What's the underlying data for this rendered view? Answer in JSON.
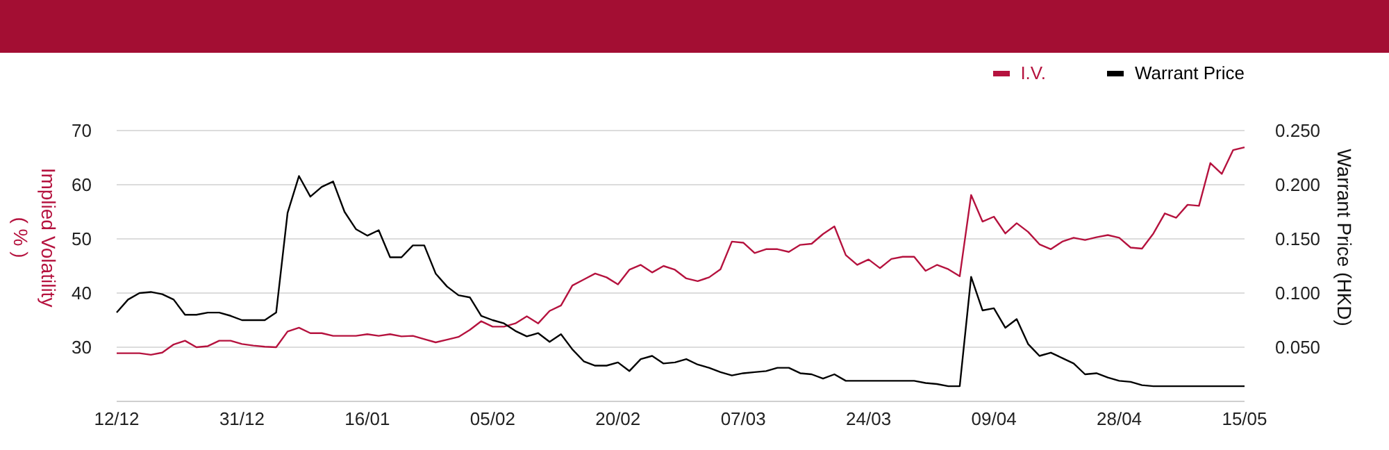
{
  "chart_data": {
    "type": "line",
    "ylabel": "Implied Volatility\n( % )",
    "y2label": "Warrant Price (HKD)",
    "categories": [
      "12/12",
      null,
      null,
      null,
      null,
      null,
      null,
      null,
      null,
      null,
      null,
      "31/12",
      null,
      null,
      null,
      null,
      null,
      null,
      null,
      null,
      null,
      null,
      "16/01",
      null,
      null,
      null,
      null,
      null,
      null,
      null,
      null,
      null,
      null,
      "05/02",
      null,
      null,
      null,
      null,
      null,
      null,
      null,
      null,
      null,
      null,
      "20/02",
      null,
      null,
      null,
      null,
      null,
      null,
      null,
      null,
      null,
      null,
      "07/03",
      null,
      null,
      null,
      null,
      null,
      null,
      null,
      null,
      null,
      null,
      "24/03",
      null,
      null,
      null,
      null,
      null,
      null,
      null,
      null,
      null,
      null,
      "09/04",
      null,
      null,
      null,
      null,
      null,
      null,
      null,
      null,
      null,
      null,
      "28/04",
      null,
      null,
      null,
      null,
      null,
      null,
      null,
      null,
      null,
      null,
      "15/05"
    ],
    "series": [
      {
        "name": "I.V.",
        "color": "#b5123e",
        "values": [
          28.9,
          28.9,
          28.9,
          28.6,
          29.0,
          30.5,
          31.2,
          30.0,
          30.2,
          31.2,
          31.2,
          30.6,
          30.3,
          30.1,
          30.0,
          32.9,
          33.6,
          32.6,
          32.6,
          32.1,
          32.1,
          32.1,
          32.4,
          32.1,
          32.4,
          32.0,
          32.1,
          31.5,
          30.9,
          31.4,
          31.9,
          33.2,
          34.8,
          33.8,
          33.8,
          34.4,
          35.7,
          34.4,
          36.7,
          37.7,
          41.4,
          42.5,
          43.6,
          42.9,
          41.6,
          44.3,
          45.2,
          43.8,
          45.0,
          44.3,
          42.7,
          42.2,
          42.9,
          44.4,
          49.5,
          49.3,
          47.4,
          48.1,
          48.1,
          47.6,
          48.9,
          49.1,
          50.9,
          52.3,
          47.0,
          45.2,
          46.2,
          44.6,
          46.3,
          46.7,
          46.7,
          44.1,
          45.2,
          44.4,
          43.1,
          58.1,
          53.2,
          54.1,
          51.0,
          52.9,
          51.3,
          49.0,
          48.1,
          49.5,
          50.2,
          49.8,
          50.3,
          50.7,
          50.2,
          48.4,
          48.2,
          51.0,
          54.7,
          53.9,
          56.3,
          56.1,
          64.0,
          62.0,
          66.4,
          66.9
        ]
      },
      {
        "name": "Warrant Price",
        "color": "#000000",
        "axis": "y2",
        "values": [
          0.082,
          0.094,
          0.1,
          0.101,
          0.099,
          0.094,
          0.08,
          0.08,
          0.082,
          0.082,
          0.079,
          0.075,
          0.075,
          0.075,
          0.082,
          0.174,
          0.208,
          0.189,
          0.198,
          0.203,
          0.175,
          0.159,
          0.153,
          0.158,
          0.133,
          0.133,
          0.144,
          0.144,
          0.118,
          0.106,
          0.098,
          0.096,
          0.079,
          0.075,
          0.072,
          0.065,
          0.06,
          0.063,
          0.055,
          0.062,
          0.048,
          0.037,
          0.033,
          0.033,
          0.036,
          0.028,
          0.039,
          0.042,
          0.035,
          0.036,
          0.039,
          0.034,
          0.031,
          0.027,
          0.024,
          0.026,
          0.027,
          0.028,
          0.031,
          0.031,
          0.026,
          0.025,
          0.021,
          0.025,
          0.019,
          0.019,
          0.019,
          0.019,
          0.019,
          0.019,
          0.019,
          0.017,
          0.016,
          0.014,
          0.014,
          0.115,
          0.084,
          0.086,
          0.068,
          0.076,
          0.053,
          0.042,
          0.045,
          0.04,
          0.035,
          0.025,
          0.026,
          0.022,
          0.019,
          0.018,
          0.015,
          0.014,
          0.014,
          0.014,
          0.014,
          0.014,
          0.014,
          0.014,
          0.014,
          0.014
        ]
      }
    ],
    "ylim": [
      20,
      70
    ],
    "yticks": [
      30,
      40,
      50,
      60,
      70
    ],
    "y2lim": [
      0,
      0.25
    ],
    "y2ticks": [
      {
        "value": 0.05,
        "label": "0.050"
      },
      {
        "value": 0.1,
        "label": "0.100"
      },
      {
        "value": 0.15,
        "label": "0.150"
      },
      {
        "value": 0.2,
        "label": "0.200"
      },
      {
        "value": 0.25,
        "label": "0.250"
      }
    ],
    "grid": "y",
    "legend": "top right"
  }
}
